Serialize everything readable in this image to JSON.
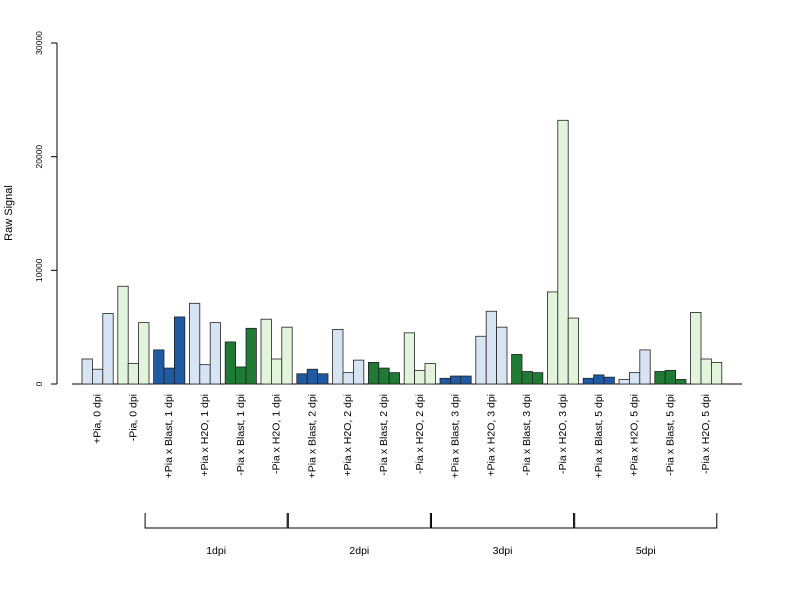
{
  "chart_data": {
    "type": "bar",
    "ylabel": "Raw Signal",
    "ylim": [
      0,
      30000
    ],
    "y_ticks": [
      0,
      10000,
      20000,
      30000
    ],
    "colors": {
      "light_blue": "#d6e4f3",
      "light_green": "#e2f5dc",
      "dark_blue": "#1f5aa3",
      "dark_green": "#1e7a35"
    },
    "groups": [
      {
        "label": "+Pia, 0 dpi",
        "color": "light_blue",
        "values": [
          2200,
          1300,
          6200
        ]
      },
      {
        "label": "-Pia, 0 dpi",
        "color": "light_green",
        "values": [
          8600,
          1800,
          5400
        ]
      },
      {
        "label": "+Pia x Blast, 1 dpi",
        "color": "dark_blue",
        "values": [
          3000,
          1400,
          5900
        ]
      },
      {
        "label": "+Pia x H2O, 1 dpi",
        "color": "light_blue",
        "values": [
          7100,
          1700,
          5400
        ]
      },
      {
        "label": "-Pia x Blast, 1 dpi",
        "color": "dark_green",
        "values": [
          3700,
          1500,
          4900
        ]
      },
      {
        "label": "-Pia x H2O, 1 dpi",
        "color": "light_green",
        "values": [
          5700,
          2200,
          5000
        ]
      },
      {
        "label": "+Pia x Blast, 2 dpi",
        "color": "dark_blue",
        "values": [
          900,
          1300,
          900
        ]
      },
      {
        "label": "+Pia x H2O, 2 dpi",
        "color": "light_blue",
        "values": [
          4800,
          1000,
          2100
        ]
      },
      {
        "label": "-Pia x Blast, 2 dpi",
        "color": "dark_green",
        "values": [
          1900,
          1400,
          1000
        ]
      },
      {
        "label": "-Pia x H2O, 2 dpi",
        "color": "light_green",
        "values": [
          4500,
          1200,
          1800
        ]
      },
      {
        "label": "+Pia x Blast, 3 dpi",
        "color": "dark_blue",
        "values": [
          500,
          700,
          700
        ]
      },
      {
        "label": "+Pia x H2O, 3 dpi",
        "color": "light_blue",
        "values": [
          4200,
          6400,
          5000
        ]
      },
      {
        "label": "-Pia x Blast, 3 dpi",
        "color": "dark_green",
        "values": [
          2600,
          1100,
          1000
        ]
      },
      {
        "label": "-Pia x H2O, 3 dpi",
        "color": "light_green",
        "values": [
          8100,
          23200,
          5800
        ]
      },
      {
        "label": "+Pia x Blast, 5 dpi",
        "color": "dark_blue",
        "values": [
          500,
          800,
          600
        ]
      },
      {
        "label": "+Pia x H2O, 5 dpi",
        "color": "light_blue",
        "values": [
          400,
          1000,
          3000
        ]
      },
      {
        "label": "-Pia x Blast, 5 dpi",
        "color": "dark_green",
        "values": [
          1100,
          1200,
          400
        ]
      },
      {
        "label": "-Pia x H2O, 5 dpi",
        "color": "light_green",
        "values": [
          6300,
          2200,
          1900
        ]
      }
    ],
    "brackets": [
      {
        "label": "1dpi",
        "first_group": 2,
        "last_group": 5
      },
      {
        "label": "2dpi",
        "first_group": 6,
        "last_group": 9
      },
      {
        "label": "3dpi",
        "first_group": 10,
        "last_group": 13
      },
      {
        "label": "5dpi",
        "first_group": 14,
        "last_group": 17
      }
    ],
    "grid": false,
    "legend": "none"
  }
}
